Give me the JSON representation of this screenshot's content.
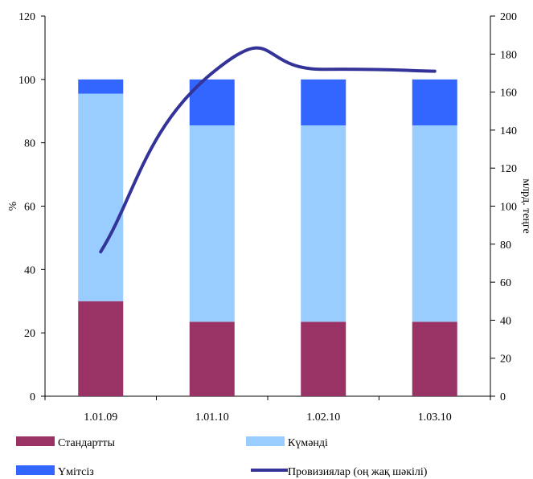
{
  "chart_data": {
    "type": "bar",
    "stacked": true,
    "categories": [
      "1.01.09",
      "1.01.10",
      "1.02.10",
      "1.03.10"
    ],
    "series": [
      {
        "name": "Стандартты",
        "values": [
          30,
          23.5,
          23.5,
          23.5
        ],
        "color": "#993366",
        "axis": "left"
      },
      {
        "name": "Күмәнді",
        "values": [
          65.5,
          62,
          62,
          62
        ],
        "color": "#99ccff",
        "axis": "left"
      },
      {
        "name": "Үмітсіз",
        "values": [
          4.5,
          14.5,
          14.5,
          14.5
        ],
        "color": "#3366ff",
        "axis": "left"
      },
      {
        "name": "Провизиялар (оң жақ шәкілі)",
        "type": "line",
        "values": [
          76,
          170,
          172,
          171
        ],
        "color": "#333399",
        "axis": "right"
      }
    ],
    "ylabel": "%",
    "y2label": "млрд. теңге",
    "ylim": [
      0,
      120
    ],
    "y2lim": [
      0,
      200
    ],
    "yticks": [
      "0",
      "20",
      "40",
      "60",
      "80",
      "100",
      "120"
    ],
    "y2ticks": [
      "0",
      "20",
      "40",
      "60",
      "80",
      "100",
      "120",
      "140",
      "160",
      "180",
      "200"
    ],
    "grid": false,
    "legend_position": "bottom"
  }
}
